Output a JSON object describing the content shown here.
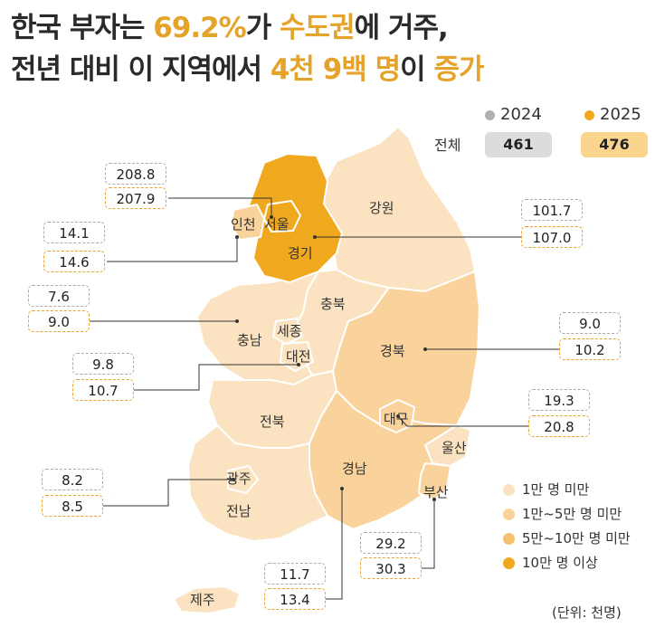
{
  "title": {
    "line1": [
      "한국 부자는 ",
      "69.2%",
      "가 ",
      "수도권",
      "에 거주,"
    ],
    "line2": [
      "전년 대비 이 지역에서 ",
      "4천 9백 명",
      "이 ",
      "증가"
    ]
  },
  "legend_top": {
    "year_prev": "2024",
    "year_curr": "2025",
    "total_label": "전체",
    "total_prev": "461",
    "total_curr": "476"
  },
  "regions": {
    "seoul": {
      "name": "서울",
      "v2024": "208.8",
      "v2025": "207.9"
    },
    "incheon": {
      "name": "인천",
      "v2024": "14.1",
      "v2025": "14.6"
    },
    "gyeonggi": {
      "name": "경기",
      "v2024": "101.7",
      "v2025": "107.0"
    },
    "chungnam": {
      "name": "충남",
      "v2024": "7.6",
      "v2025": "9.0"
    },
    "gyeongbuk": {
      "name": "경북",
      "v2024": "9.0",
      "v2025": "10.2"
    },
    "daejeon": {
      "name": "대전",
      "v2024": "9.8",
      "v2025": "10.7"
    },
    "daegu": {
      "name": "대구",
      "v2024": "19.3",
      "v2025": "20.8"
    },
    "gwangju": {
      "name": "광주",
      "v2024": "8.2",
      "v2025": "8.5"
    },
    "busan": {
      "name": "부산",
      "v2024": "29.2",
      "v2025": "30.3"
    },
    "gyeongnam": {
      "name": "경남",
      "v2024": "11.7",
      "v2025": "13.4"
    },
    "gangwon": {
      "name": "강원"
    },
    "chungbuk": {
      "name": "충북"
    },
    "sejong": {
      "name": "세종"
    },
    "jeonbuk": {
      "name": "전북"
    },
    "jeonnam": {
      "name": "전남"
    },
    "ulsan": {
      "name": "울산"
    },
    "jeju": {
      "name": "제주"
    }
  },
  "legend_bottom": [
    {
      "label": "1만 명 미만",
      "color": "#fbe3c1"
    },
    {
      "label": "1만~5만 명 미만",
      "color": "#f9d39b"
    },
    {
      "label": "5만~10만 명 미만",
      "color": "#f6c16e"
    },
    {
      "label": "10만 명 이상",
      "color": "#f0a81e"
    }
  ],
  "colors": {
    "accent": "#e4a32b",
    "prev_dot": "#b0b0b0",
    "prev_box": "#dcdcdc",
    "curr_box": "#fbd58e",
    "tier1": "#fbe3c1",
    "tier2": "#f9d39b",
    "tier3": "#f6c16e",
    "tier4": "#f0a81e"
  },
  "unit": "(단위: 천명)"
}
